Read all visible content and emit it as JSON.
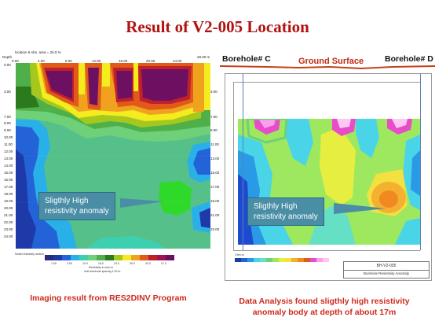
{
  "title": "Result of V2-005 Location",
  "left_panel": {
    "header_depth": "Depth",
    "header_location": "location 6 Abs. area = 25.0 %",
    "header_units": "28.00 m",
    "x_ticks": [
      "0.00",
      "4.00",
      "8.00",
      "12.00",
      "16.00",
      "20.00",
      "24.00"
    ],
    "depth_ticks": [
      "0.00",
      "3.00",
      "7.00",
      "8.00",
      "9.00",
      "10.00",
      "11.00",
      "12.00",
      "13.00",
      "14.00",
      "15.00",
      "16.00",
      "17.00",
      "18.00",
      "19.00",
      "20.00",
      "21.00",
      "22.00",
      "23.00",
      "24.00"
    ],
    "callout": [
      "Sligthly High",
      "resistivity anomaly"
    ],
    "legend_title": "Model resistivity section",
    "legend_values": [
      "1.00",
      "3.00",
      "10.0",
      "16.0",
      "24.0",
      "30.0",
      "42.0",
      "47.0"
    ],
    "legend_units": "Resistivity in ohm.m",
    "legend_spacing": "Unit electrode spacing 1.00 m.",
    "caption": "Imaging result from RES2DINV Program"
  },
  "right_panel": {
    "borehole_c": "Borehole# C",
    "borehole_d": "Borehole# D",
    "ground_surface": "Ground Surface",
    "callout": [
      "Sligthly High",
      "resistivity anomaly"
    ],
    "legend_label": "Ohm-m",
    "titleblock_name": "BH-V2-005",
    "titleblock_sub": "Borehole Resistivity Anomaly",
    "caption_lines": [
      "Data Analysis found sligthly high resistivity",
      "anomaly body at depth of about 17m"
    ]
  },
  "colors": {
    "title": "#b01212",
    "caption": "#d02a1e",
    "callout_bg": "#4a8ea6",
    "ground_line": "#c4401a",
    "borehole_line": "#5b7fb8"
  },
  "color_scale": [
    "#2a2a7a",
    "#1e3aa8",
    "#2462d8",
    "#2ab0e8",
    "#3cd0b0",
    "#6fd07a",
    "#4fb04a",
    "#2c7a1e",
    "#a6c81e",
    "#f4ec1e",
    "#f0a21e",
    "#e05a1a",
    "#c0202a",
    "#a01450",
    "#6e1062"
  ]
}
